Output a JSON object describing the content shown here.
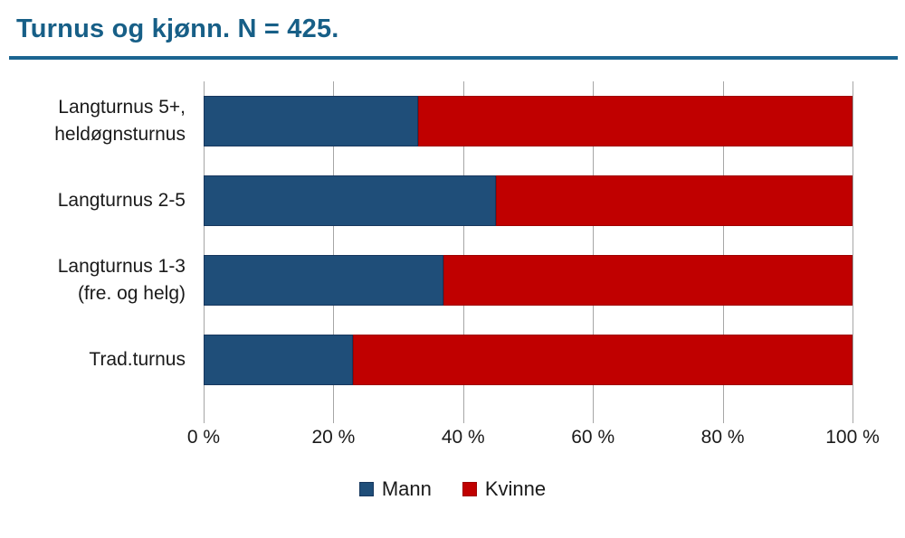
{
  "chart_data": {
    "type": "bar",
    "orientation": "horizontal",
    "stacked": true,
    "title": "Turnus og kjønn. N = 425.",
    "categories": [
      "Langturnus 5+,\nheldøgnsturnus",
      "Langturnus 2-5",
      "Langturnus 1-3\n(fre. og helg)",
      "Trad.turnus"
    ],
    "series": [
      {
        "name": "Mann",
        "color": "#1F4E79",
        "border_color": "#17375E",
        "values": [
          33,
          45,
          37,
          23
        ]
      },
      {
        "name": "Kvinne",
        "color": "#C00000",
        "border_color": "#9E0000",
        "values": [
          67,
          55,
          63,
          77
        ]
      }
    ],
    "xlim": [
      0,
      100
    ],
    "x_ticks": [
      {
        "value": 0,
        "label": "0 %"
      },
      {
        "value": 20,
        "label": "20 %"
      },
      {
        "value": 40,
        "label": "40 %"
      },
      {
        "value": 60,
        "label": "60 %"
      },
      {
        "value": 80,
        "label": "80 %"
      },
      {
        "value": 100,
        "label": "100 %"
      }
    ],
    "grid": "vertical",
    "legend_position": "bottom"
  },
  "style": {
    "title_color": "#175F87",
    "rule_color": "#1B6591",
    "grid_color": "#A6A6A6",
    "text_color": "#1A1A1A",
    "background_color": "#FFFFFF"
  }
}
